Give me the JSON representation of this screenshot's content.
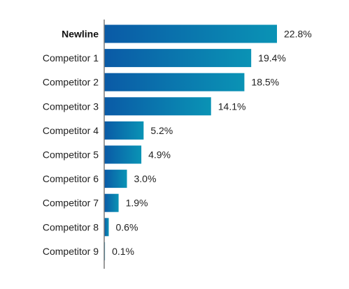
{
  "chart_data": {
    "type": "bar",
    "orientation": "horizontal",
    "categories": [
      "Newline",
      "Competitor 1",
      "Competitor 2",
      "Competitor 3",
      "Competitor 4",
      "Competitor 5",
      "Competitor 6",
      "Competitor 7",
      "Competitor 8",
      "Competitor 9"
    ],
    "values": [
      22.8,
      19.4,
      18.5,
      14.1,
      5.2,
      4.9,
      3.0,
      1.9,
      0.6,
      0.1
    ],
    "data_labels": [
      "22.8%",
      "19.4%",
      "18.5%",
      "14.1%",
      "5.2%",
      "4.9%",
      "3.0%",
      "1.9%",
      "0.6%",
      "0.1%"
    ],
    "highlighted_category": "Newline",
    "xlim": [
      0,
      22.8
    ],
    "grid": false,
    "legend": "none",
    "title": "",
    "xlabel": "",
    "ylabel": "",
    "colors": {
      "bar_gradient_start": "#0a5aa6",
      "bar_gradient_end": "#0a93b5",
      "axis_line": "#7a7a7a",
      "text": "#1f1f1f"
    }
  }
}
